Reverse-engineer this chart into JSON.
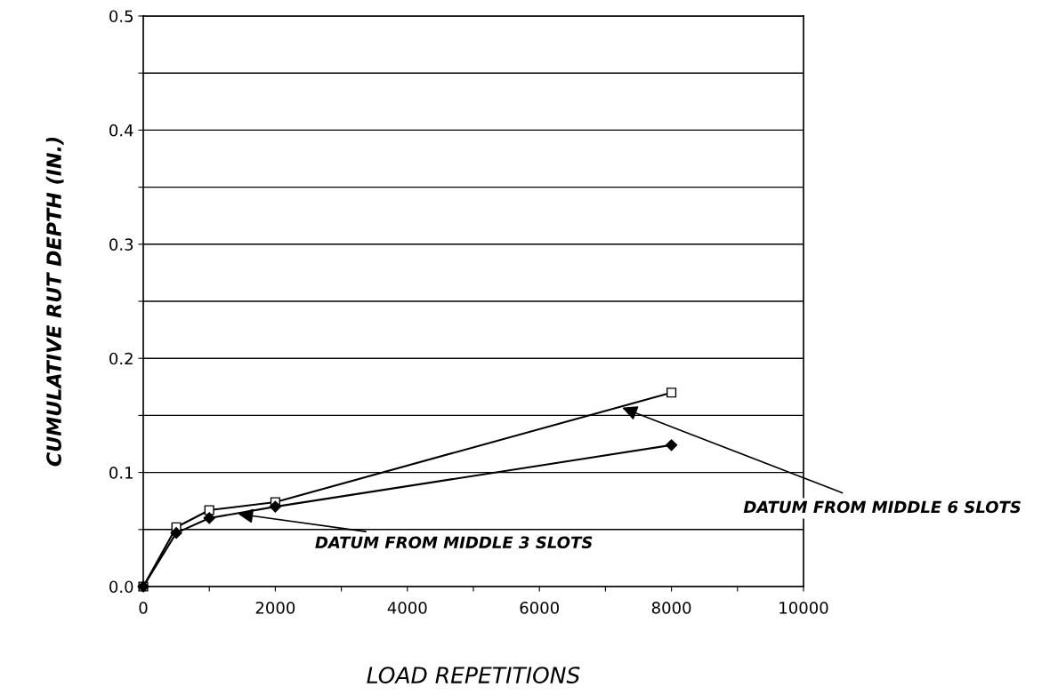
{
  "chart_data": {
    "type": "line",
    "xlabel": "LOAD REPETITIONS",
    "ylabel": "CUMULATIVE RUT DEPTH (IN.)",
    "x": [
      0,
      500,
      1000,
      2000,
      8000
    ],
    "series": [
      {
        "name": "DATUM FROM MIDDLE 6 SLOTS",
        "color": "#000000",
        "marker": "square",
        "values": [
          0.0,
          0.052,
          0.067,
          0.074,
          0.17
        ]
      },
      {
        "name": "DATUM FROM MIDDLE 3 SLOTS",
        "color": "#000000",
        "marker": "diamond",
        "values": [
          0.0,
          0.047,
          0.06,
          0.07,
          0.124
        ]
      }
    ],
    "xlim": [
      0,
      10000
    ],
    "xticks": [
      0,
      {
        "value": 1000,
        "label": null
      },
      2000,
      {
        "value": 3000,
        "label": null
      },
      4000,
      {
        "value": 5000,
        "label": null
      },
      6000,
      {
        "value": 7000,
        "label": null
      },
      8000,
      {
        "value": 9000,
        "label": null
      },
      10000
    ],
    "ylim": [
      0,
      0.5
    ],
    "yticks": [
      {
        "value": 0,
        "label": "0.0"
      },
      {
        "value": 0.05,
        "label": null
      },
      0.1,
      {
        "value": 0.15,
        "label": null
      },
      0.2,
      {
        "value": 0.25,
        "label": null
      },
      0.3,
      {
        "value": 0.35,
        "label": null
      },
      0.4,
      {
        "value": 0.45,
        "label": null
      },
      0.5
    ],
    "grid": "y",
    "line_style": "solid"
  }
}
